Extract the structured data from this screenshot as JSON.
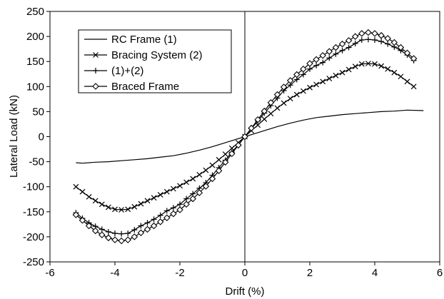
{
  "chart_data": {
    "type": "line",
    "xlabel": "Drift (%)",
    "ylabel": "Lateral Load (kN)",
    "xlim": [
      -6,
      6
    ],
    "ylim": [
      -250,
      250
    ],
    "x_ticks": [
      -6,
      -4,
      -2,
      0,
      2,
      4,
      6
    ],
    "y_ticks": [
      -250,
      -200,
      -150,
      -100,
      -50,
      0,
      50,
      100,
      150,
      200,
      250
    ],
    "grid": false,
    "legend_position": "top-left",
    "line_color": "#000000",
    "series": [
      {
        "name": "RC Frame (1)",
        "marker": "none",
        "points": [
          [
            -5.2,
            -52
          ],
          [
            -5.0,
            -53
          ],
          [
            -4.6,
            -51
          ],
          [
            -4.2,
            -50
          ],
          [
            -3.8,
            -48
          ],
          [
            -3.4,
            -46
          ],
          [
            -3.0,
            -44
          ],
          [
            -2.6,
            -41
          ],
          [
            -2.2,
            -38
          ],
          [
            -1.8,
            -33
          ],
          [
            -1.4,
            -27
          ],
          [
            -1.0,
            -20
          ],
          [
            -0.6,
            -12
          ],
          [
            -0.3,
            -6
          ],
          [
            0,
            0
          ],
          [
            0.3,
            6
          ],
          [
            0.6,
            12
          ],
          [
            1.0,
            20
          ],
          [
            1.4,
            27
          ],
          [
            1.8,
            33
          ],
          [
            2.2,
            38
          ],
          [
            2.6,
            41
          ],
          [
            3.0,
            44
          ],
          [
            3.4,
            46
          ],
          [
            3.8,
            48
          ],
          [
            4.2,
            50
          ],
          [
            4.6,
            51
          ],
          [
            5.0,
            53
          ],
          [
            5.5,
            52
          ]
        ]
      },
      {
        "name": "Bracing System (2)",
        "marker": "x",
        "points": [
          [
            -5.2,
            -100
          ],
          [
            -5.0,
            -110
          ],
          [
            -4.8,
            -120
          ],
          [
            -4.6,
            -128
          ],
          [
            -4.4,
            -135
          ],
          [
            -4.2,
            -141
          ],
          [
            -4.0,
            -145
          ],
          [
            -3.8,
            -146
          ],
          [
            -3.6,
            -145
          ],
          [
            -3.4,
            -140
          ],
          [
            -3.2,
            -134
          ],
          [
            -3.0,
            -128
          ],
          [
            -2.8,
            -122
          ],
          [
            -2.6,
            -116
          ],
          [
            -2.4,
            -110
          ],
          [
            -2.2,
            -104
          ],
          [
            -2.0,
            -98
          ],
          [
            -1.8,
            -91
          ],
          [
            -1.6,
            -84
          ],
          [
            -1.4,
            -76
          ],
          [
            -1.2,
            -67
          ],
          [
            -1.0,
            -57
          ],
          [
            -0.8,
            -46
          ],
          [
            -0.6,
            -35
          ],
          [
            -0.4,
            -23
          ],
          [
            -0.2,
            -12
          ],
          [
            0,
            0
          ],
          [
            0.2,
            12
          ],
          [
            0.4,
            23
          ],
          [
            0.6,
            35
          ],
          [
            0.8,
            46
          ],
          [
            1.0,
            57
          ],
          [
            1.2,
            67
          ],
          [
            1.4,
            76
          ],
          [
            1.6,
            84
          ],
          [
            1.8,
            91
          ],
          [
            2.0,
            98
          ],
          [
            2.2,
            104
          ],
          [
            2.4,
            110
          ],
          [
            2.6,
            116
          ],
          [
            2.8,
            122
          ],
          [
            3.0,
            128
          ],
          [
            3.2,
            134
          ],
          [
            3.4,
            140
          ],
          [
            3.6,
            145
          ],
          [
            3.8,
            146
          ],
          [
            4.0,
            145
          ],
          [
            4.2,
            141
          ],
          [
            4.4,
            135
          ],
          [
            4.6,
            128
          ],
          [
            4.8,
            120
          ],
          [
            5.0,
            110
          ],
          [
            5.2,
            100
          ]
        ]
      },
      {
        "name": "(1)+(2)",
        "marker": "plus",
        "points": [
          [
            -5.2,
            -152
          ],
          [
            -5.0,
            -163
          ],
          [
            -4.8,
            -172
          ],
          [
            -4.6,
            -179
          ],
          [
            -4.4,
            -185
          ],
          [
            -4.2,
            -190
          ],
          [
            -4.0,
            -193
          ],
          [
            -3.8,
            -194
          ],
          [
            -3.6,
            -193
          ],
          [
            -3.4,
            -186
          ],
          [
            -3.2,
            -178
          ],
          [
            -3.0,
            -172
          ],
          [
            -2.8,
            -165
          ],
          [
            -2.6,
            -157
          ],
          [
            -2.4,
            -148
          ],
          [
            -2.2,
            -142
          ],
          [
            -2.0,
            -135
          ],
          [
            -1.8,
            -124
          ],
          [
            -1.6,
            -114
          ],
          [
            -1.4,
            -103
          ],
          [
            -1.2,
            -92
          ],
          [
            -1.0,
            -77
          ],
          [
            -0.8,
            -62
          ],
          [
            -0.6,
            -47
          ],
          [
            -0.4,
            -31
          ],
          [
            -0.2,
            -16
          ],
          [
            0,
            0
          ],
          [
            0.2,
            16
          ],
          [
            0.4,
            31
          ],
          [
            0.6,
            47
          ],
          [
            0.8,
            62
          ],
          [
            1.0,
            77
          ],
          [
            1.2,
            92
          ],
          [
            1.4,
            103
          ],
          [
            1.6,
            114
          ],
          [
            1.8,
            124
          ],
          [
            2.0,
            135
          ],
          [
            2.2,
            142
          ],
          [
            2.4,
            148
          ],
          [
            2.6,
            157
          ],
          [
            2.8,
            165
          ],
          [
            3.0,
            172
          ],
          [
            3.2,
            178
          ],
          [
            3.4,
            186
          ],
          [
            3.6,
            193
          ],
          [
            3.8,
            194
          ],
          [
            4.0,
            193
          ],
          [
            4.2,
            190
          ],
          [
            4.4,
            185
          ],
          [
            4.6,
            179
          ],
          [
            4.8,
            172
          ],
          [
            5.0,
            163
          ],
          [
            5.2,
            152
          ]
        ]
      },
      {
        "name": "Braced Frame",
        "marker": "diamond",
        "points": [
          [
            -5.2,
            -156
          ],
          [
            -5.0,
            -167
          ],
          [
            -4.8,
            -178
          ],
          [
            -4.6,
            -188
          ],
          [
            -4.4,
            -196
          ],
          [
            -4.2,
            -202
          ],
          [
            -4.0,
            -206
          ],
          [
            -3.8,
            -208
          ],
          [
            -3.6,
            -206
          ],
          [
            -3.4,
            -200
          ],
          [
            -3.2,
            -192
          ],
          [
            -3.0,
            -185
          ],
          [
            -2.8,
            -178
          ],
          [
            -2.6,
            -170
          ],
          [
            -2.4,
            -162
          ],
          [
            -2.2,
            -154
          ],
          [
            -2.0,
            -146
          ],
          [
            -1.8,
            -135
          ],
          [
            -1.6,
            -124
          ],
          [
            -1.4,
            -112
          ],
          [
            -1.2,
            -99
          ],
          [
            -1.0,
            -84
          ],
          [
            -0.8,
            -68
          ],
          [
            -0.6,
            -51
          ],
          [
            -0.4,
            -34
          ],
          [
            -0.2,
            -17
          ],
          [
            0,
            0
          ],
          [
            0.2,
            17
          ],
          [
            0.4,
            34
          ],
          [
            0.6,
            51
          ],
          [
            0.8,
            68
          ],
          [
            1.0,
            84
          ],
          [
            1.2,
            99
          ],
          [
            1.4,
            112
          ],
          [
            1.6,
            124
          ],
          [
            1.8,
            135
          ],
          [
            2.0,
            146
          ],
          [
            2.2,
            154
          ],
          [
            2.4,
            162
          ],
          [
            2.6,
            170
          ],
          [
            2.8,
            178
          ],
          [
            3.0,
            185
          ],
          [
            3.2,
            192
          ],
          [
            3.4,
            200
          ],
          [
            3.6,
            206
          ],
          [
            3.8,
            208
          ],
          [
            4.0,
            206
          ],
          [
            4.2,
            202
          ],
          [
            4.4,
            196
          ],
          [
            4.6,
            188
          ],
          [
            4.8,
            178
          ],
          [
            5.0,
            167
          ],
          [
            5.2,
            156
          ]
        ]
      }
    ]
  }
}
